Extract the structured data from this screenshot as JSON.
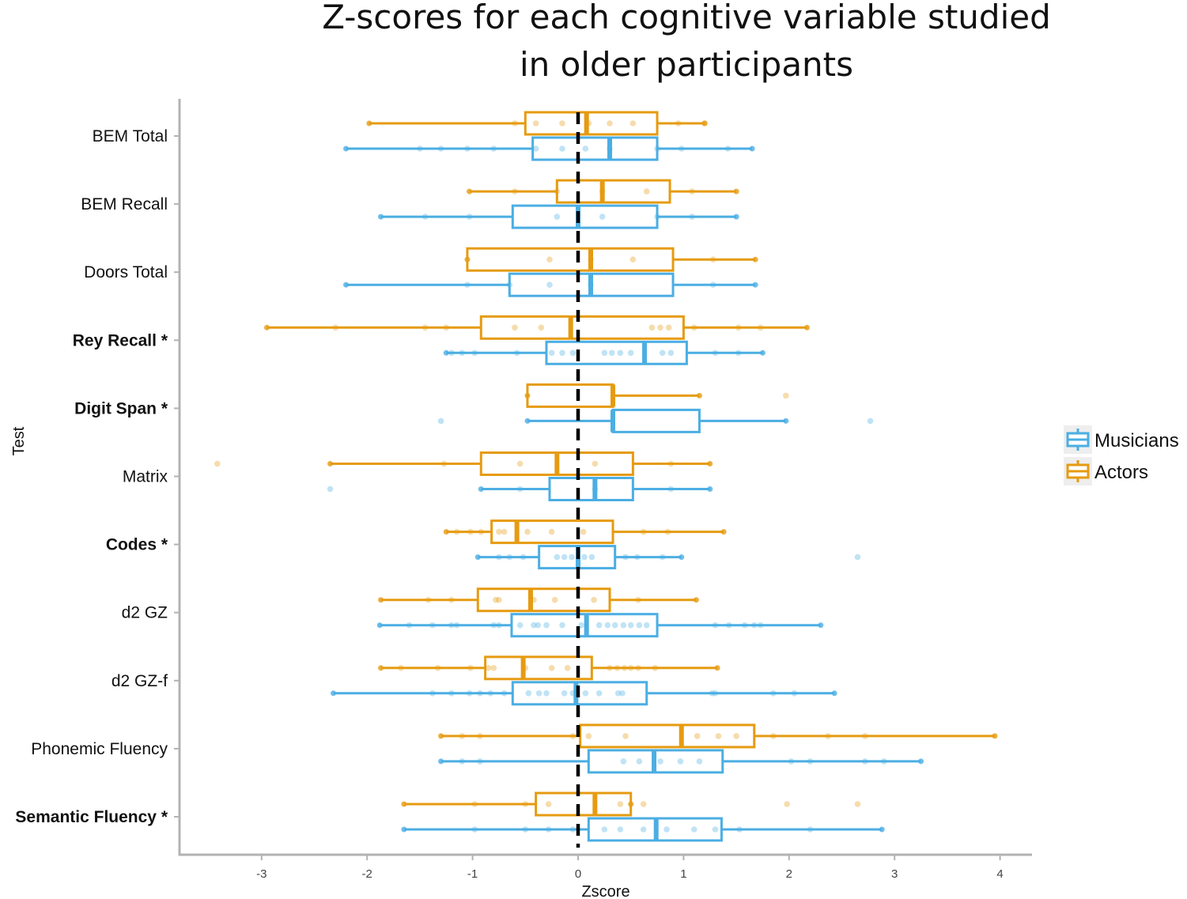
{
  "chart_data": {
    "type": "boxplot",
    "title_lines": [
      "Z-scores for each cognitive variable studied",
      "in older participants"
    ],
    "xlabel": "Zscore",
    "ylabel": "Test",
    "xlim": [
      -3.8,
      4.3
    ],
    "xticks": [
      -3,
      -2,
      -1,
      0,
      1,
      2,
      3,
      4
    ],
    "reference_line": 0,
    "legend": {
      "position": "right",
      "entries": [
        {
          "name": "Musicians",
          "color": "#4BAEE3"
        },
        {
          "name": "Actors",
          "color": "#E69B11"
        }
      ]
    },
    "series_colors": {
      "Musicians": "#4BAEE3",
      "Actors": "#E69B11"
    },
    "tests": [
      {
        "label": "BEM Total",
        "significant": false,
        "actors": {
          "whisker_low": -1.98,
          "q1": -0.5,
          "median": 0.08,
          "q3": 0.75,
          "whisker_high": 1.2,
          "points": [
            -0.6,
            -0.4,
            -0.15,
            0.1,
            0.3,
            0.52,
            0.95,
            1.2
          ]
        },
        "musicians": {
          "whisker_low": -2.2,
          "q1": -0.43,
          "median": 0.3,
          "q3": 0.75,
          "whisker_high": 1.65,
          "points": [
            -1.5,
            -1.3,
            -1.05,
            -0.8,
            -0.4,
            -0.15,
            0.07,
            0.3,
            0.75,
            0.98,
            1.42
          ]
        }
      },
      {
        "label": "BEM Recall",
        "significant": false,
        "actors": {
          "whisker_low": -1.03,
          "q1": -0.2,
          "median": 0.23,
          "q3": 0.87,
          "whisker_high": 1.5,
          "points": [
            -0.6,
            -0.2,
            0.23,
            0.65,
            1.08
          ]
        },
        "musicians": {
          "whisker_low": -1.87,
          "q1": -0.62,
          "median": 0.0,
          "q3": 0.75,
          "whisker_high": 1.5,
          "points": [
            -1.45,
            -1.03,
            -0.2,
            0.23,
            0.75,
            1.08
          ]
        }
      },
      {
        "label": "Doors Total",
        "significant": false,
        "actors": {
          "whisker_low": -1.05,
          "q1": -1.05,
          "median": 0.12,
          "q3": 0.9,
          "whisker_high": 1.68,
          "points": [
            -0.27,
            0.12,
            0.52,
            1.28
          ]
        },
        "musicians": {
          "whisker_low": -2.2,
          "q1": -0.65,
          "median": 0.12,
          "q3": 0.9,
          "whisker_high": 1.68,
          "points": [
            -1.05,
            -0.65,
            -0.27,
            0.12,
            1.28
          ]
        }
      },
      {
        "label": "Rey Recall *",
        "significant": true,
        "actors": {
          "whisker_low": -2.95,
          "q1": -0.92,
          "median": -0.07,
          "q3": 1.0,
          "whisker_high": 2.17,
          "points": [
            -2.3,
            -1.45,
            -1.25,
            -0.6,
            -0.35,
            0.7,
            0.78,
            0.86,
            1.1,
            1.52,
            1.73
          ]
        },
        "musicians": {
          "whisker_low": -1.25,
          "q1": -0.3,
          "median": 0.63,
          "q3": 1.03,
          "whisker_high": 1.75,
          "points": [
            -1.2,
            -1.1,
            -0.98,
            -0.58,
            -0.25,
            -0.15,
            -0.05,
            0.25,
            0.32,
            0.4,
            0.5,
            0.8,
            0.88,
            1.3,
            1.52
          ]
        }
      },
      {
        "label": "Digit Span *",
        "significant": true,
        "actors": {
          "whisker_low": -0.48,
          "q1": -0.48,
          "median": 0.33,
          "q3": 0.33,
          "whisker_high": 1.15,
          "points": [
            1.97
          ]
        },
        "musicians": {
          "whisker_low": -0.48,
          "q1": 0.33,
          "median": 0.33,
          "q3": 1.15,
          "whisker_high": 1.97,
          "points": [
            -1.3,
            2.77
          ]
        }
      },
      {
        "label": "Matrix",
        "significant": false,
        "actors": {
          "whisker_low": -2.35,
          "q1": -0.92,
          "median": -0.2,
          "q3": 0.52,
          "whisker_high": 1.25,
          "points": [
            -3.42,
            -1.27,
            -0.55,
            0.16,
            0.88
          ]
        },
        "musicians": {
          "whisker_low": -0.92,
          "q1": -0.27,
          "median": 0.16,
          "q3": 0.52,
          "whisker_high": 1.25,
          "points": [
            -2.35,
            -0.55,
            0.16,
            0.88
          ]
        }
      },
      {
        "label": "Codes *",
        "significant": true,
        "actors": {
          "whisker_low": -1.25,
          "q1": -0.82,
          "median": -0.58,
          "q3": 0.33,
          "whisker_high": 1.38,
          "points": [
            -1.15,
            -1.02,
            -0.92,
            -0.75,
            -0.7,
            -0.48,
            -0.25,
            0.05,
            0.62,
            0.85
          ]
        },
        "musicians": {
          "whisker_low": -0.95,
          "q1": -0.37,
          "median": 0.0,
          "q3": 0.35,
          "whisker_high": 0.98,
          "points": [
            -0.75,
            -0.65,
            -0.52,
            -0.2,
            -0.13,
            -0.06,
            0.06,
            0.13,
            0.45,
            0.56,
            0.8,
            2.65
          ]
        }
      },
      {
        "label": "d2 GZ",
        "significant": false,
        "actors": {
          "whisker_low": -1.87,
          "q1": -0.95,
          "median": -0.45,
          "q3": 0.3,
          "whisker_high": 1.12,
          "points": [
            -1.42,
            -1.2,
            -0.78,
            -0.75,
            -0.42,
            -0.22,
            0.15,
            0.57
          ]
        },
        "musicians": {
          "whisker_low": -1.88,
          "q1": -0.63,
          "median": 0.08,
          "q3": 0.75,
          "whisker_high": 2.3,
          "points": [
            -1.6,
            -1.38,
            -1.2,
            -1.15,
            -0.8,
            -0.75,
            -0.55,
            -0.42,
            -0.38,
            -0.3,
            -0.15,
            0.03,
            0.2,
            0.28,
            0.35,
            0.43,
            0.5,
            0.58,
            0.65,
            1.3,
            1.43,
            1.58,
            1.67,
            1.73
          ]
        }
      },
      {
        "label": "d2 GZ-f",
        "significant": false,
        "actors": {
          "whisker_low": -1.87,
          "q1": -0.88,
          "median": -0.52,
          "q3": 0.13,
          "whisker_high": 1.32,
          "points": [
            -1.68,
            -1.33,
            -1.02,
            -0.85,
            -0.8,
            -0.5,
            -0.25,
            -0.1,
            0.3,
            0.37,
            0.44,
            0.5,
            0.57,
            0.73
          ]
        },
        "musicians": {
          "whisker_low": -2.32,
          "q1": -0.62,
          "median": -0.02,
          "q3": 0.65,
          "whisker_high": 2.43,
          "points": [
            -1.38,
            -1.2,
            -1.03,
            -0.93,
            -0.83,
            -0.7,
            -0.47,
            -0.37,
            -0.3,
            -0.13,
            -0.05,
            0.07,
            0.2,
            0.38,
            0.42,
            1.27,
            1.3,
            1.85,
            2.05
          ]
        }
      },
      {
        "label": "Phonemic Fluency",
        "significant": false,
        "actors": {
          "whisker_low": -1.3,
          "q1": 0.02,
          "median": 0.98,
          "q3": 1.67,
          "whisker_high": 3.95,
          "points": [
            -1.1,
            -0.93,
            -0.05,
            0.1,
            0.45,
            1.13,
            1.33,
            1.5,
            1.85,
            2.37,
            2.72
          ]
        },
        "musicians": {
          "whisker_low": -1.3,
          "q1": 0.1,
          "median": 0.72,
          "q3": 1.37,
          "whisker_high": 3.25,
          "points": [
            -1.1,
            -0.93,
            0.43,
            0.58,
            0.78,
            0.97,
            1.15,
            2.02,
            2.2,
            2.72,
            2.9
          ]
        }
      },
      {
        "label": "Semantic Fluency *",
        "significant": true,
        "actors": {
          "whisker_low": -1.65,
          "q1": -0.4,
          "median": 0.16,
          "q3": 0.5,
          "whisker_high": 0.5,
          "points": [
            -0.98,
            -0.5,
            -0.28,
            0.4,
            0.62,
            1.98,
            2.65
          ]
        },
        "musicians": {
          "whisker_low": -1.65,
          "q1": 0.1,
          "median": 0.74,
          "q3": 1.36,
          "whisker_high": 2.88,
          "points": [
            -0.98,
            -0.5,
            -0.28,
            -0.05,
            0.25,
            0.4,
            0.62,
            0.84,
            1.1,
            1.3,
            1.53,
            2.2
          ]
        }
      }
    ]
  }
}
